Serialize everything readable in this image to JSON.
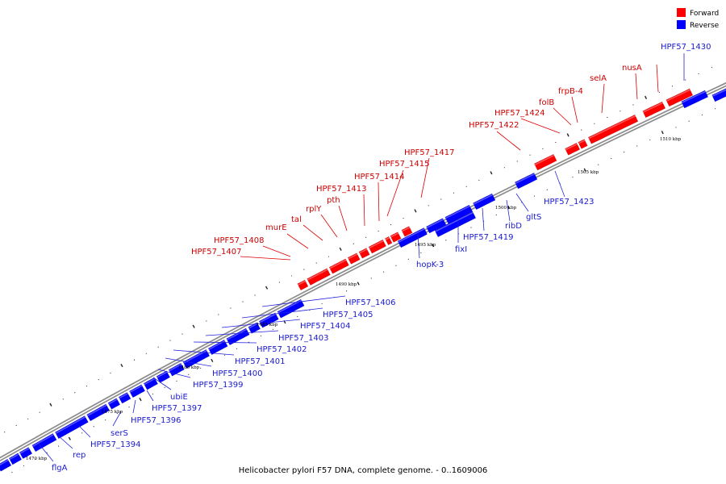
{
  "title": "Helicobacter pylori F57 DNA, complete genome. - 0..1609006",
  "legend": [
    {
      "label": "Forward",
      "color": "#ff0000"
    },
    {
      "label": "Reverse",
      "color": "#0000ff"
    }
  ],
  "colors": {
    "forward": "#ff0000",
    "reverse": "#0000ff",
    "backbone": "#8c8c8c"
  },
  "tick_labels": [
    "1470 kbp",
    "1475 kbp",
    "1480 kbp",
    "1485 kbp",
    "1490 kbp",
    "1495 kbp",
    "1500 kbp",
    "1505 kbp",
    "1510 kbp"
  ],
  "forward_labels": [
    "HPF57_1407",
    "HPF57_1408",
    "murE",
    "tal",
    "rplY",
    "pth",
    "HPF57_1413",
    "HPF57_1414",
    "HPF57_1415",
    "HPF57_1417",
    "HPF57_1422",
    "HPF57_1424",
    "folB",
    "frpB-4",
    "selA",
    "nusA"
  ],
  "reverse_labels": [
    "flgA",
    "rep",
    "HPF57_1394",
    "serS",
    "HPF57_1396",
    "HPF57_1397",
    "ubiE",
    "HPF57_1399",
    "HPF57_1400",
    "HPF57_1401",
    "HPF57_1402",
    "HPF57_1403",
    "HPF57_1404",
    "HPF57_1405",
    "HPF57_1406",
    "hopK-3",
    "fixI",
    "HPF57_1419",
    "ribD",
    "gltS",
    "HPF57_1423",
    "HPF57_1430"
  ]
}
